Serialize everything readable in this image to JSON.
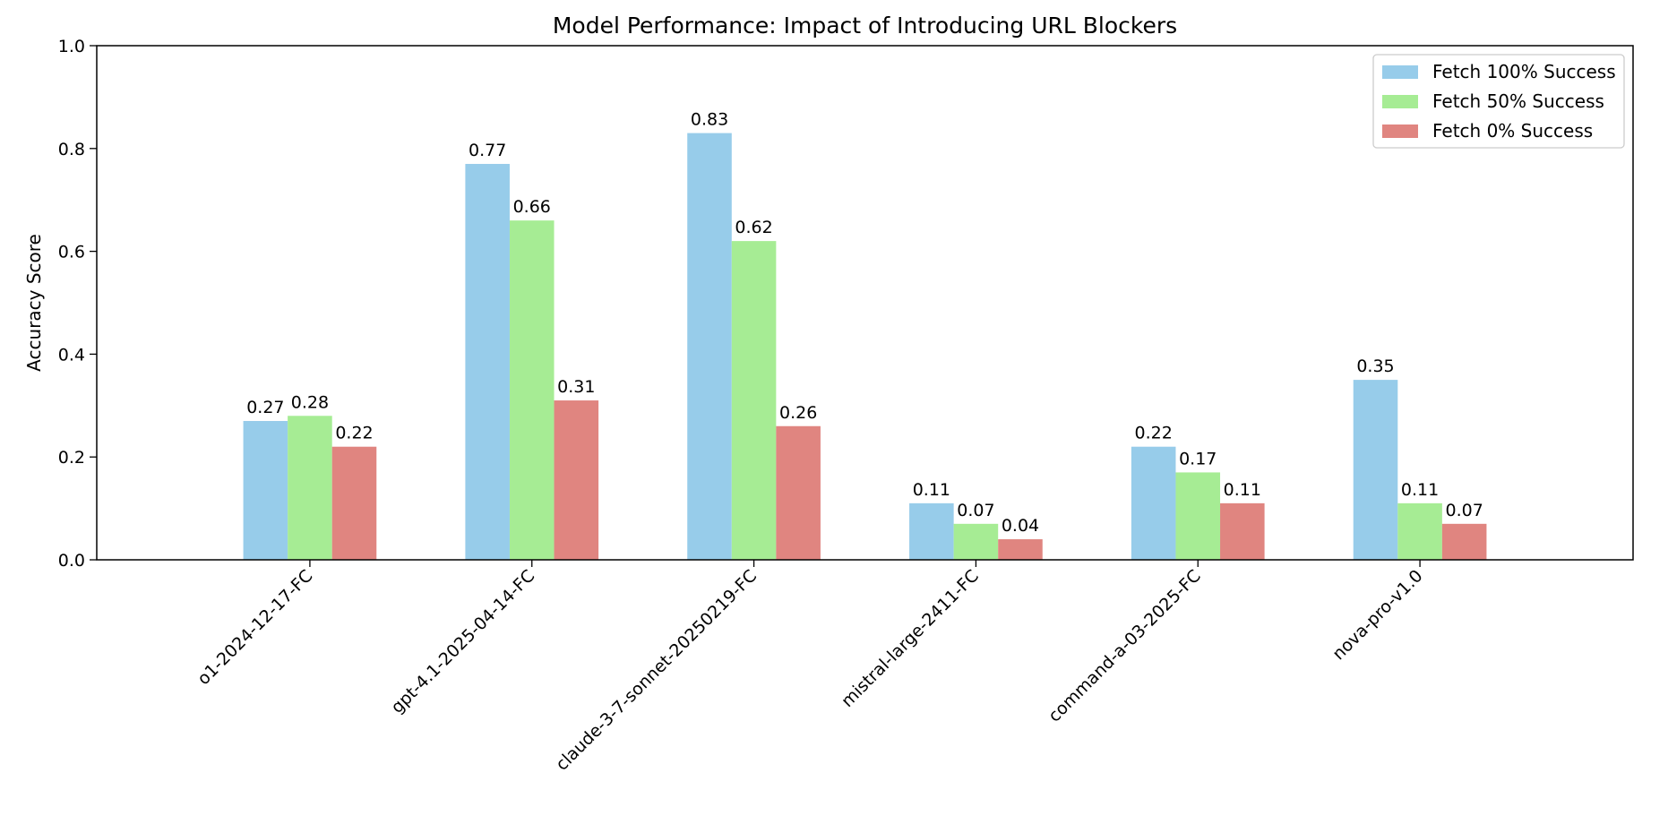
{
  "chart_data": {
    "type": "bar",
    "title": "Model Performance: Impact of Introducing URL Blockers",
    "xlabel": "",
    "ylabel": "Accuracy Score",
    "ylim": [
      0.0,
      1.0
    ],
    "yticks": [
      "0.0",
      "0.2",
      "0.4",
      "0.6",
      "0.8",
      "1.0"
    ],
    "categories": [
      "o1-2024-12-17-FC",
      "gpt-4.1-2025-04-14-FC",
      "claude-3-7-sonnet-20250219-FC",
      "mistral-large-2411-FC",
      "command-a-03-2025-FC",
      "nova-pro-v1.0"
    ],
    "series": [
      {
        "name": "Fetch 100% Success",
        "color": "#97CCEA",
        "values": [
          0.27,
          0.77,
          0.83,
          0.11,
          0.22,
          0.35
        ],
        "labels": [
          "0.27",
          "0.77",
          "0.83",
          "0.11",
          "0.22",
          "0.35"
        ]
      },
      {
        "name": "Fetch 50% Success",
        "color": "#A6EC94",
        "values": [
          0.28,
          0.66,
          0.62,
          0.07,
          0.17,
          0.11
        ],
        "labels": [
          "0.28",
          "0.66",
          "0.62",
          "0.07",
          "0.17",
          "0.11"
        ]
      },
      {
        "name": "Fetch 0% Success",
        "color": "#E08580",
        "values": [
          0.22,
          0.31,
          0.26,
          0.04,
          0.11,
          0.07
        ],
        "labels": [
          "0.22",
          "0.31",
          "0.26",
          "0.04",
          "0.11",
          "0.07"
        ]
      }
    ],
    "legend_position": "top-right",
    "grid": false
  }
}
